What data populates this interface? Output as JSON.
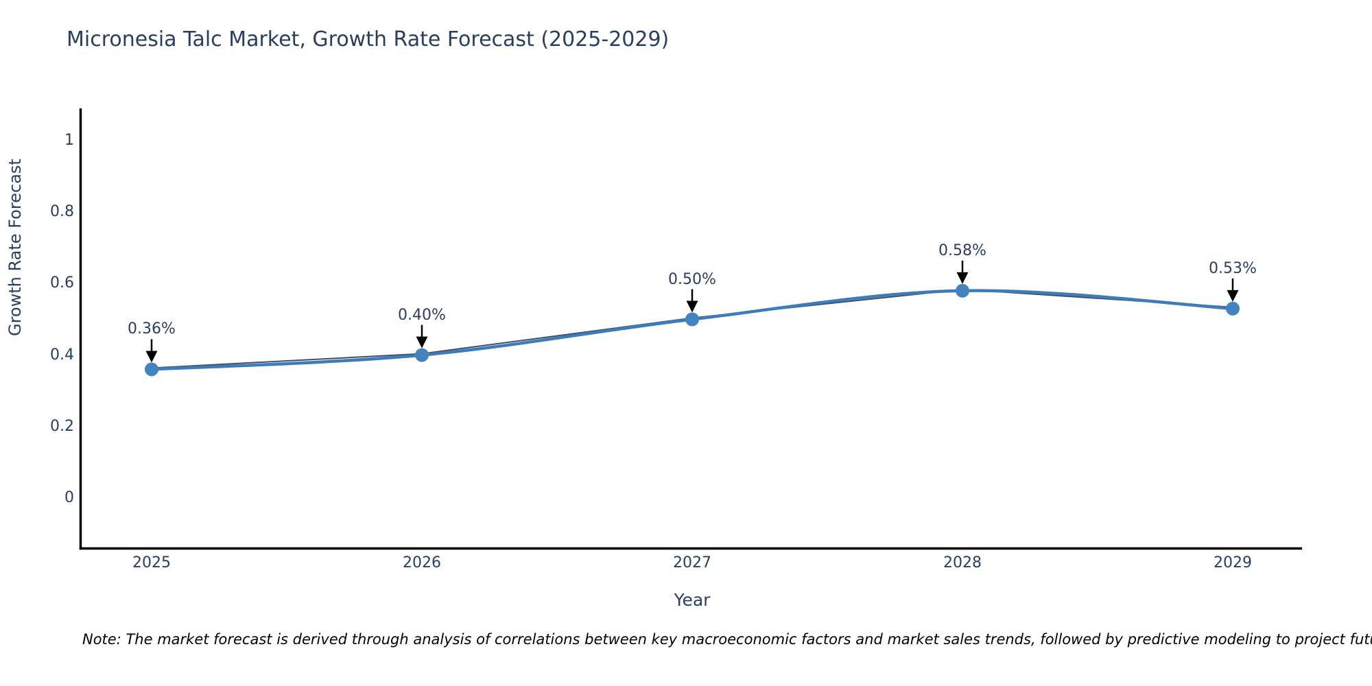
{
  "chart_data": {
    "type": "line",
    "title": "Micronesia Talc Market, Growth Rate Forecast (2025-2029)",
    "xlabel": "Year",
    "ylabel": "Growth Rate Forecast",
    "categories": [
      "2025",
      "2026",
      "2027",
      "2028",
      "2029"
    ],
    "x_tick_labels": [
      "2025",
      "2026",
      "2027",
      "2028",
      "2029"
    ],
    "y_ticks": [
      1,
      0.8,
      0.6,
      0.4,
      0.2,
      0
    ],
    "y_tick_labels": [
      "1",
      "0.8",
      "0.6",
      "0.4",
      "0.2",
      "0"
    ],
    "series": [
      {
        "name": "Growth Rate Forecast",
        "values": [
          0.36,
          0.4,
          0.5,
          0.58,
          0.53
        ]
      }
    ],
    "point_labels": [
      "0.36%",
      "0.40%",
      "0.50%",
      "0.58%",
      "0.53%"
    ],
    "ylim": [
      -0.14,
      1.09
    ],
    "grid": false,
    "legend_position": "none",
    "colors": {
      "line": "#3c7cba",
      "marker": "#4383c0",
      "trend_line": "#3e4f63",
      "axis": "#000000",
      "arrow": "#000000",
      "text": "#2a3f5f"
    }
  },
  "note": "Note: The market forecast is derived through analysis of correlations between key macroeconomic factors and market sales trends, followed by predictive modeling to project future sales"
}
